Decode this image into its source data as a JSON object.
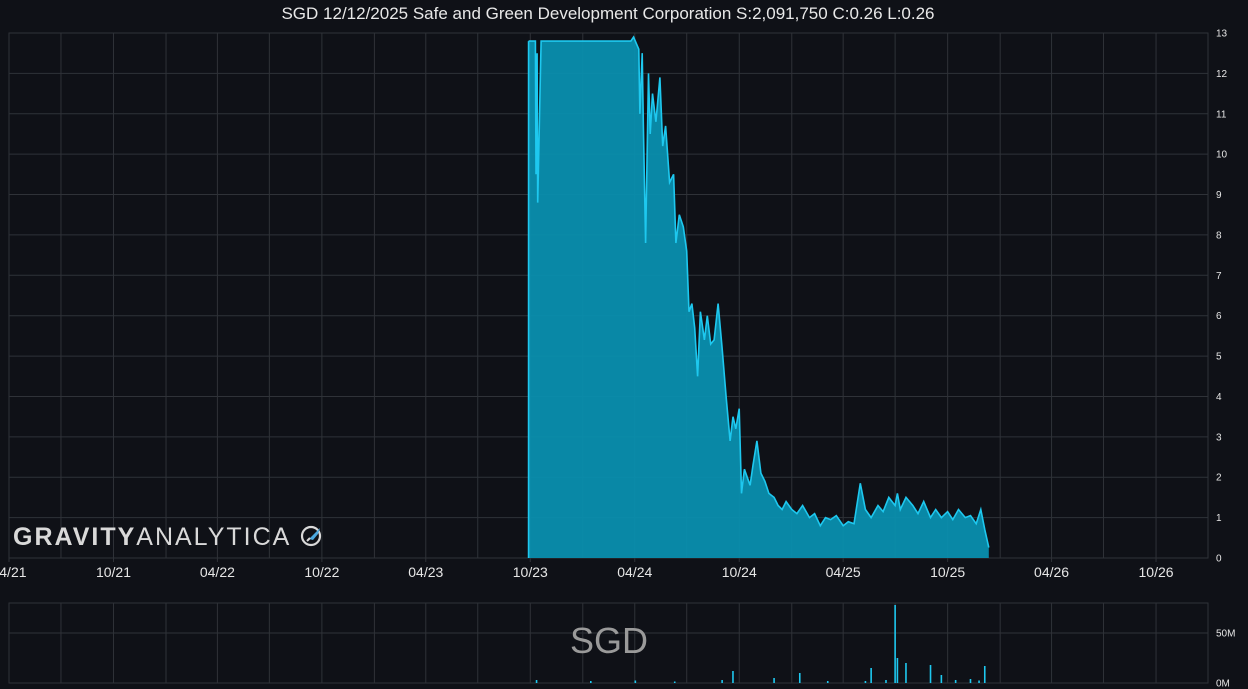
{
  "title": "SGD 12/12/2025 Safe and Green Development Corporation S:2,091,750 C:0.26 L:0.26",
  "logo": {
    "word1": "GRAVITY",
    "word2": "ANALYTICA",
    "icon": "rocket-icon"
  },
  "ticker": "SGD",
  "colors": {
    "background": "#0f1117",
    "grid": "#2f3238",
    "line": "#1ec8ef",
    "fill": "#0a8fae",
    "text": "#e6e6e6"
  },
  "chart_data": [
    {
      "type": "area",
      "name": "price",
      "xlabel": "",
      "ylabel": "",
      "x_ticks": [
        "04/21",
        "10/21",
        "04/22",
        "10/22",
        "04/23",
        "10/23",
        "04/24",
        "10/24",
        "04/25",
        "10/25",
        "04/26",
        "10/26"
      ],
      "y_ticks": [
        "0",
        "1",
        "2",
        "3",
        "4",
        "5",
        "6",
        "7",
        "8",
        "9",
        "10",
        "11",
        "12",
        "13"
      ],
      "ylim": [
        0,
        13
      ],
      "xlim": [
        "2021-04-01",
        "2026-12-31"
      ],
      "grid": true,
      "series": [
        {
          "x": [
            "2023-09-28",
            "2023-10-05",
            "2023-10-10",
            "2023-10-11",
            "2023-10-13",
            "2023-10-14",
            "2023-10-20",
            "2023-12-01",
            "2024-02-01",
            "2024-03-15",
            "2024-03-25",
            "2024-03-30",
            "2024-04-02",
            "2024-04-05",
            "2024-04-08",
            "2024-04-10",
            "2024-04-14",
            "2024-04-16",
            "2024-04-20",
            "2024-04-25",
            "2024-04-28",
            "2024-05-02",
            "2024-05-08",
            "2024-05-15",
            "2024-05-20",
            "2024-05-25",
            "2024-06-01",
            "2024-06-08",
            "2024-06-12",
            "2024-06-18",
            "2024-06-25",
            "2024-07-01",
            "2024-07-05",
            "2024-07-10",
            "2024-07-15",
            "2024-07-20",
            "2024-07-25",
            "2024-08-01",
            "2024-08-06",
            "2024-08-12",
            "2024-08-18",
            "2024-08-25",
            "2024-09-01",
            "2024-09-08",
            "2024-09-15",
            "2024-09-20",
            "2024-09-25",
            "2024-10-01",
            "2024-10-05",
            "2024-10-10",
            "2024-10-15",
            "2024-10-20",
            "2024-10-25",
            "2024-11-01",
            "2024-11-08",
            "2024-11-15",
            "2024-11-22",
            "2024-12-01",
            "2024-12-08",
            "2024-12-15",
            "2024-12-22",
            "2025-01-01",
            "2025-01-10",
            "2025-01-20",
            "2025-02-01",
            "2025-02-10",
            "2025-02-20",
            "2025-03-01",
            "2025-03-10",
            "2025-03-20",
            "2025-04-01",
            "2025-04-10",
            "2025-04-20",
            "2025-05-01",
            "2025-05-10",
            "2025-05-20",
            "2025-06-01",
            "2025-06-10",
            "2025-06-20",
            "2025-07-01",
            "2025-07-05",
            "2025-07-10",
            "2025-07-20",
            "2025-08-01",
            "2025-08-10",
            "2025-08-20",
            "2025-09-01",
            "2025-09-10",
            "2025-09-20",
            "2025-10-01",
            "2025-10-10",
            "2025-10-20",
            "2025-11-01",
            "2025-11-10",
            "2025-11-20",
            "2025-11-28",
            "2025-12-05",
            "2025-12-12"
          ],
          "y": [
            12.8,
            12.8,
            12.8,
            9.5,
            12.5,
            8.8,
            12.8,
            12.8,
            12.8,
            12.8,
            12.8,
            12.9,
            12.8,
            12.7,
            12.6,
            11.0,
            12.5,
            10.8,
            7.8,
            12.0,
            10.5,
            11.5,
            10.8,
            11.9,
            10.2,
            10.7,
            9.3,
            9.5,
            7.8,
            8.5,
            8.2,
            7.6,
            6.1,
            6.3,
            5.7,
            4.5,
            6.1,
            5.4,
            6.0,
            5.3,
            5.4,
            6.3,
            5.2,
            4.0,
            2.9,
            3.5,
            3.2,
            3.7,
            1.6,
            2.2,
            2.0,
            1.8,
            2.3,
            2.9,
            2.1,
            1.9,
            1.6,
            1.5,
            1.3,
            1.2,
            1.4,
            1.2,
            1.1,
            1.3,
            1.0,
            1.1,
            0.8,
            1.0,
            0.95,
            1.05,
            0.8,
            0.9,
            0.85,
            1.85,
            1.2,
            1.0,
            1.3,
            1.15,
            1.5,
            1.3,
            1.6,
            1.2,
            1.5,
            1.3,
            1.1,
            1.4,
            1.0,
            1.2,
            1.0,
            1.15,
            0.95,
            1.2,
            1.0,
            1.05,
            0.85,
            1.2,
            0.7,
            0.26
          ]
        }
      ]
    },
    {
      "type": "bar",
      "name": "volume",
      "ylabel": "",
      "y_ticks": [
        "50M",
        "0M"
      ],
      "ylim": [
        0,
        80000000
      ],
      "x": [
        "2023-10-12",
        "2024-01-15",
        "2024-04-02",
        "2024-06-10",
        "2024-09-01",
        "2024-09-20",
        "2024-12-01",
        "2025-01-15",
        "2025-03-05",
        "2025-05-10",
        "2025-05-20",
        "2025-06-15",
        "2025-07-01",
        "2025-07-05",
        "2025-07-20",
        "2025-09-01",
        "2025-09-20",
        "2025-10-15",
        "2025-11-10",
        "2025-11-25",
        "2025-12-05"
      ],
      "values": [
        3000000,
        2000000,
        2500000,
        1500000,
        3000000,
        12000000,
        5000000,
        10000000,
        2000000,
        2000000,
        15000000,
        3000000,
        78000000,
        25000000,
        20000000,
        18000000,
        8000000,
        3000000,
        4000000,
        2500000,
        17000000
      ]
    }
  ]
}
